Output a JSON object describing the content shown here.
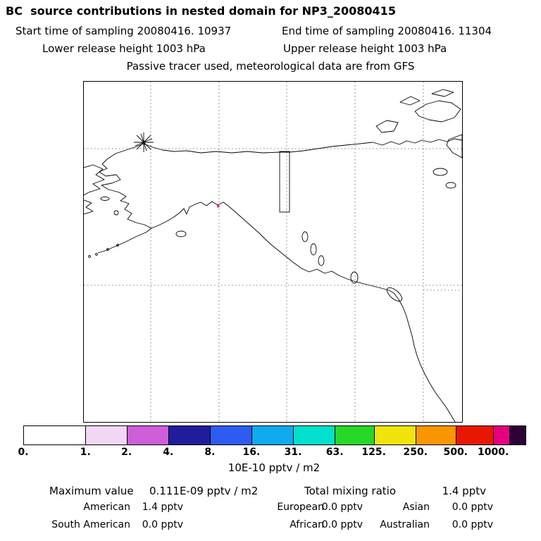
{
  "title": "BC  source contributions in nested domain for NP3_20080415",
  "header": {
    "start_time": "Start time of sampling 20080416. 10937",
    "end_time": "End time of sampling 20080416. 11304",
    "lower_release": "Lower release height 1003 hPa",
    "upper_release": "Upper release height 1003 hPa",
    "tracer_line": "Passive tracer used, meteorological data are from GFS"
  },
  "colorbar": {
    "units_label": "10E-10 pptv / m2",
    "tick_labels": [
      "0.",
      "1.",
      "2.",
      "4.",
      "8.",
      "16.",
      "31.",
      "63.",
      "125.",
      "250.",
      "500.",
      "1000."
    ],
    "tick_positions_pct": [
      0,
      12.4,
      20.6,
      28.9,
      37.2,
      45.5,
      53.8,
      62.1,
      69.9,
      78.2,
      86.2,
      93.7
    ],
    "segment_widths_pct": [
      12.4,
      8.2,
      8.3,
      8.3,
      8.3,
      8.3,
      8.3,
      7.8,
      8.3,
      8.0,
      7.5,
      3.2,
      3.1
    ],
    "segment_colors": [
      "#ffffff",
      "#f2d7f4",
      "#ce5eda",
      "#201d9c",
      "#2e5cf2",
      "#10aaee",
      "#00e0cc",
      "#28d828",
      "#f0e40c",
      "#fa9600",
      "#e81800",
      "#e6007e",
      "#2d0036"
    ]
  },
  "stats": {
    "maximum_label": "Maximum value",
    "maximum_value": "0.111E-09 pptv / m2",
    "total_label": "Total mixing ratio",
    "total_value": "1.4 pptv",
    "regions": [
      {
        "name": "American",
        "value": "1.4 pptv"
      },
      {
        "name": "European",
        "value": "0.0 pptv"
      },
      {
        "name": "Asian",
        "value": "0.0 pptv"
      },
      {
        "name": "South American",
        "value": "0.0 pptv"
      },
      {
        "name": "African",
        "value": "0.0 pptv"
      },
      {
        "name": "Australian",
        "value": "0.0 pptv"
      }
    ]
  },
  "chart_data": {
    "type": "heatmap",
    "subtype": "geographic source-contribution map (nested domain, Alaska / NW North America)",
    "title": "BC source contributions in nested domain for NP3_20080415",
    "colorbar_levels": [
      0,
      1,
      2,
      4,
      8,
      16,
      31,
      63,
      125,
      250,
      500,
      1000
    ],
    "colorbar_units": "10E-10 pptv / m2",
    "maximum_value": "0.111E-09 pptv / m2",
    "total_mixing_ratio_pptv": 1.4,
    "series": [
      {
        "name": "American",
        "value_pptv": 1.4
      },
      {
        "name": "European",
        "value_pptv": 0.0
      },
      {
        "name": "Asian",
        "value_pptv": 0.0
      },
      {
        "name": "South American",
        "value_pptv": 0.0
      },
      {
        "name": "African",
        "value_pptv": 0.0
      },
      {
        "name": "Australian",
        "value_pptv": 0.0
      }
    ],
    "legend_position": "bottom colorbar",
    "grid": true
  }
}
